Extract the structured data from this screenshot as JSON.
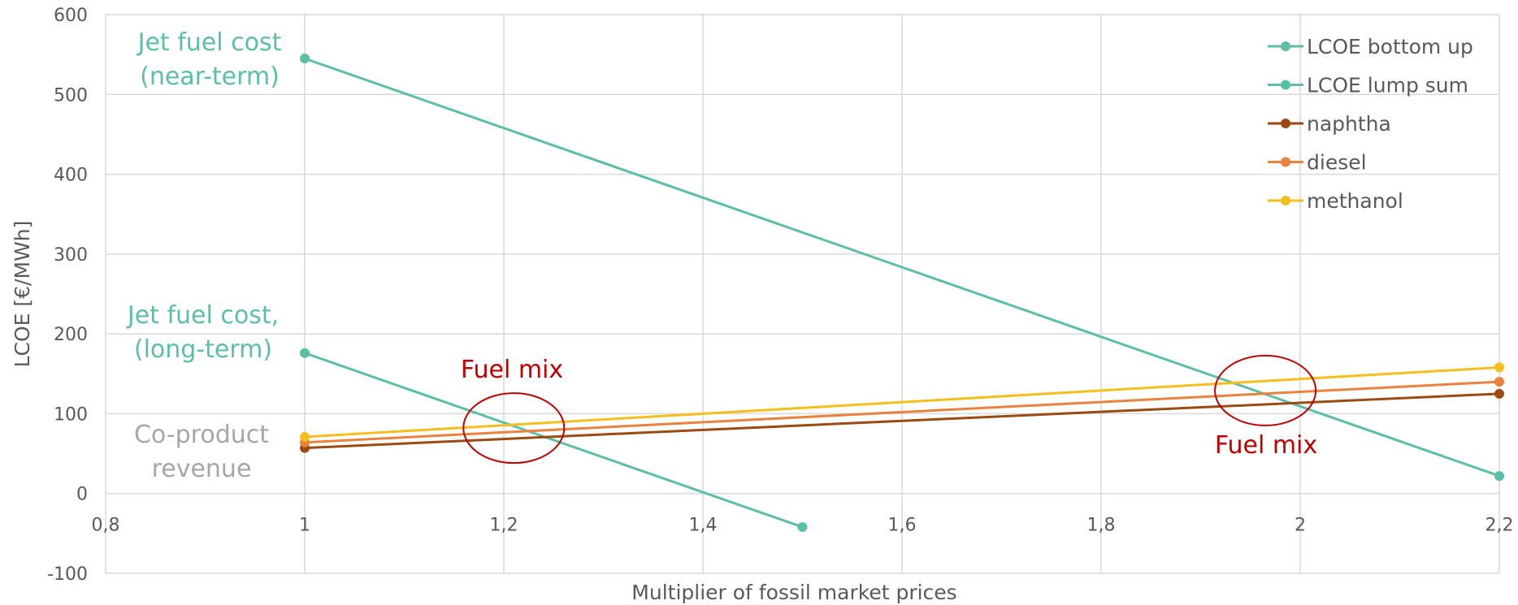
{
  "chart_data": {
    "type": "line",
    "xlabel": "Multiplier of fossil market prices",
    "ylabel": "LCOE [€/MWh]",
    "xlim": [
      0.8,
      2.2
    ],
    "ylim": [
      -100,
      600
    ],
    "x_ticks": [
      0.8,
      1,
      1.2,
      1.4,
      1.6,
      1.8,
      2,
      2.2
    ],
    "x_tick_labels": [
      "0,8",
      "1",
      "1,2",
      "1,4",
      "1,6",
      "1,8",
      "2",
      "2,2"
    ],
    "y_ticks": [
      -100,
      0,
      100,
      200,
      300,
      400,
      500,
      600
    ],
    "y_tick_labels": [
      "-100",
      "0",
      "100",
      "200",
      "300",
      "400",
      "500",
      "600"
    ],
    "grid": true,
    "legend_position": "top-right",
    "series": [
      {
        "name": "LCOE bottom up",
        "color": "#5bbfa8",
        "x": [
          1,
          2.2
        ],
        "y": [
          545,
          22
        ]
      },
      {
        "name": "LCOE lump sum",
        "color": "#5bbfa8",
        "x": [
          1,
          1.5
        ],
        "y": [
          176,
          -42
        ]
      },
      {
        "name": "naphtha",
        "color": "#9b4a12",
        "x": [
          1,
          2.2
        ],
        "y": [
          57,
          125
        ]
      },
      {
        "name": "diesel",
        "color": "#e8823c",
        "x": [
          1,
          2.2
        ],
        "y": [
          64,
          140
        ]
      },
      {
        "name": "methanol",
        "color": "#f6be1a",
        "x": [
          1,
          2.2
        ],
        "y": [
          71,
          158
        ]
      }
    ],
    "annotations": [
      {
        "lines": [
          "Jet fuel cost",
          "(near-term)"
        ],
        "color": "#5bbfa8"
      },
      {
        "lines": [
          "Jet fuel cost,",
          "(long-term)"
        ],
        "color": "#5bbfa8"
      },
      {
        "lines": [
          "Co-product",
          "revenue"
        ],
        "color": "#a6a6a6"
      },
      {
        "lines": [
          "Fuel mix"
        ],
        "color": "#c00000"
      },
      {
        "lines": [
          "Fuel mix"
        ],
        "color": "#c00000"
      }
    ],
    "highlight_circles": [
      {
        "cx": 1.21,
        "cy": 82,
        "color": "#c00000"
      },
      {
        "cx": 1.965,
        "cy": 129,
        "color": "#c00000"
      }
    ]
  }
}
